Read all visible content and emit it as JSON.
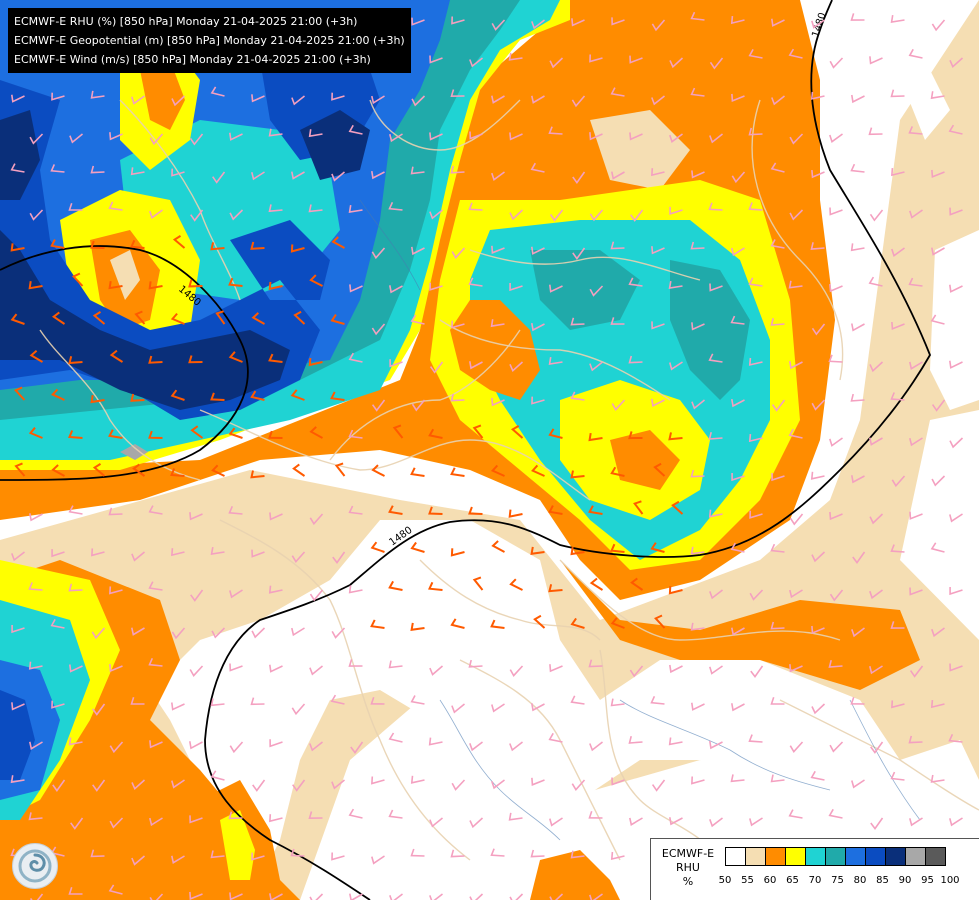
{
  "header": {
    "lines": [
      "ECMWF-E RHU (%) [850 hPa] Monday 21-04-2025 21:00 (+3h)",
      "ECMWF-E Geopotential (m) [850 hPa] Monday 21-04-2025 21:00 (+3h)",
      "ECMWF-E Wind (m/s) [850 hPa] Monday 21-04-2025 21:00 (+3h)"
    ]
  },
  "legend": {
    "model": "ECMWF-E",
    "variable": "RHU",
    "unit": "%",
    "ticks": [
      "50",
      "55",
      "60",
      "65",
      "70",
      "75",
      "80",
      "85",
      "90",
      "95",
      "100"
    ],
    "colors": [
      "#ffffff",
      "#f5deb3",
      "#ff8c00",
      "#ffff00",
      "#1fd3d3",
      "#20aaaa",
      "#1d6fe0",
      "#0b4cc1",
      "#0a2f7a",
      "#a8a8a8",
      "#5a5a5a"
    ]
  },
  "isolines": {
    "labels": [
      "1480",
      "1480",
      "1480"
    ]
  },
  "logo": {
    "icon": "swirl-logo-icon"
  },
  "colors": {
    "coastline": "#e8d2b0",
    "wind_barb_weak": "#f4a0c0",
    "wind_barb_strong": "#ff5a00",
    "isoline": "#000000"
  }
}
